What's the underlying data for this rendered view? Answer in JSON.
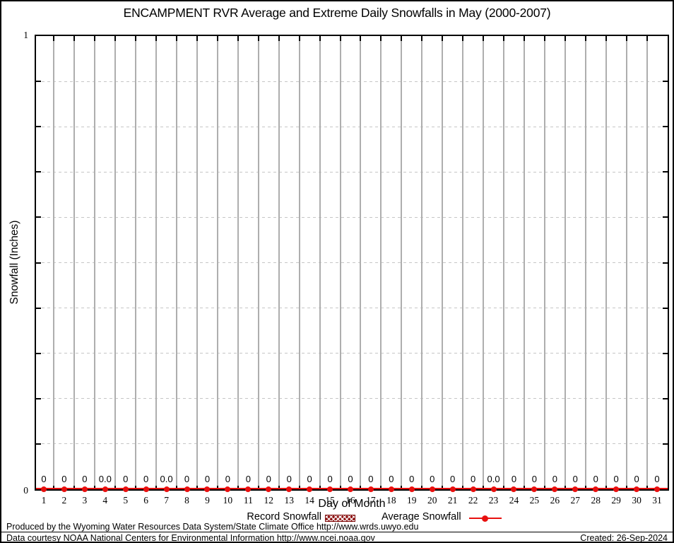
{
  "title": "ENCAMPMENT RVR Average and Extreme Daily Snowfalls in May (2000-2007)",
  "axes": {
    "y_top_label": "1",
    "y_bottom_label": "0"
  },
  "chart_data": {
    "type": "line",
    "title": "ENCAMPMENT RVR Average and Extreme Daily Snowfalls in May (2000-2007)",
    "xlabel": "Day of Month",
    "ylabel": "Snowfall (Inches)",
    "x": [
      1,
      2,
      3,
      4,
      5,
      6,
      7,
      8,
      9,
      10,
      11,
      12,
      13,
      14,
      15,
      16,
      17,
      18,
      19,
      20,
      21,
      22,
      23,
      24,
      25,
      26,
      27,
      28,
      29,
      30,
      31
    ],
    "ylim": [
      0,
      1
    ],
    "ytick_labels_shown": [
      "0",
      "1"
    ],
    "y_gridline_interval": 0.1,
    "x_gridlines_between_days": true,
    "grid": "on",
    "legend_position": "bottom",
    "series": [
      {
        "name": "Record Snowfall",
        "style": "bar",
        "color": "#8b0b0b",
        "values": [
          0,
          0,
          0,
          0,
          0,
          0,
          0,
          0,
          0,
          0,
          0,
          0,
          0,
          0,
          0,
          0,
          0,
          0,
          0,
          0,
          0,
          0,
          0,
          0,
          0,
          0,
          0,
          0,
          0,
          0,
          0
        ]
      },
      {
        "name": "Average Snowfall",
        "style": "line-marker",
        "color": "#e8100f",
        "values": [
          0,
          0,
          0,
          0,
          0,
          0,
          0,
          0,
          0,
          0,
          0,
          0,
          0,
          0,
          0,
          0,
          0,
          0,
          0,
          0,
          0,
          0,
          0,
          0,
          0,
          0,
          0,
          0,
          0,
          0,
          0
        ]
      }
    ],
    "point_labels": [
      "0",
      "0",
      "0",
      "0.0",
      "0",
      "0",
      "0.0",
      "0",
      "0",
      "0",
      "0",
      "0",
      "0",
      "0",
      "0",
      "0",
      "0",
      "0",
      "0",
      "0",
      "0",
      "0",
      "0.0",
      "0",
      "0",
      "0",
      "0",
      "0",
      "0",
      "0",
      "0"
    ]
  },
  "legend": {
    "record_label": "Record Snowfall",
    "average_label": "Average Snowfall"
  },
  "footer": {
    "line1": "Produced by the Wyoming Water Resources Data System/State Climate Office http://www.wrds.uwyo.edu",
    "line2": "Data courtesy NOAA National Centers for Environmental Information http://www.ncei.noaa.gov",
    "created": "Created: 26-Sep-2024"
  },
  "colors": {
    "line": "#e8100f",
    "record_swatch": "#8b0b0b",
    "vertical_grid": "#aeaeae",
    "horizontal_grid": "#c6c6c6",
    "axis": "#000000"
  }
}
